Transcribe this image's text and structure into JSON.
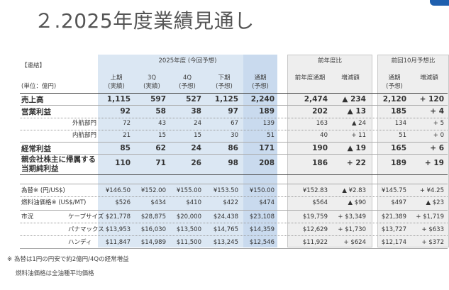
{
  "title": "２.2025年度業績見通し",
  "header": {
    "consolidated": "【連結】",
    "unit": "(単位：億円)",
    "group_2025": "2025年度 (今回予想)",
    "group_prev_year": "前年度比",
    "group_prev_fcst": "前回10月予想比",
    "cols": [
      {
        "top": "上期",
        "bottom": "(実績)"
      },
      {
        "top": "3Q",
        "bottom": "(実績)"
      },
      {
        "top": "4Q",
        "bottom": "(予想)"
      },
      {
        "top": "下期",
        "bottom": "(予想)"
      },
      {
        "top": "通期",
        "bottom": "(予想)"
      },
      {
        "top": "前年度通期",
        "bottom": ""
      },
      {
        "top": "増減額",
        "bottom": ""
      },
      {
        "top": "通期",
        "bottom": "(予想)"
      },
      {
        "top": "増減額",
        "bottom": ""
      }
    ]
  },
  "rows": [
    {
      "label": "売上高",
      "cells": [
        "1,115",
        "597",
        "527",
        "1,125",
        "2,240",
        "2,474",
        "▲ 234",
        "2,120",
        "+ 120"
      ]
    },
    {
      "label": "営業利益",
      "cells": [
        "92",
        "58",
        "38",
        "97",
        "189",
        "202",
        "▲ 13",
        "185",
        "+ 4"
      ]
    },
    {
      "label": "外航部門",
      "cells": [
        "72",
        "43",
        "24",
        "67",
        "139",
        "163",
        "▲ 24",
        "134",
        "+ 5"
      ]
    },
    {
      "label": "内航部門",
      "cells": [
        "21",
        "15",
        "15",
        "30",
        "51",
        "40",
        "+ 11",
        "51",
        "+ 0"
      ]
    },
    {
      "label": "経常利益",
      "cells": [
        "85",
        "62",
        "24",
        "86",
        "171",
        "190",
        "▲ 19",
        "165",
        "+ 6"
      ]
    },
    {
      "label": "親会社株主に帰属する",
      "label2": "当期純利益",
      "cells": [
        "110",
        "71",
        "26",
        "98",
        "208",
        "186",
        "+ 22",
        "189",
        "+ 19"
      ]
    },
    {
      "label": "為替※ (円/US$)",
      "cells": [
        "¥146.50",
        "¥152.00",
        "¥155.00",
        "¥153.50",
        "¥150.00",
        "¥152.83",
        "▲ ¥2.83",
        "¥145.75",
        "+ ¥4.25"
      ]
    },
    {
      "label": "燃料油価格※ (US$/MT)",
      "cells": [
        "$526",
        "$434",
        "$410",
        "$422",
        "$474",
        "$564",
        "▲ $90",
        "$497",
        "▲ $23"
      ]
    },
    {
      "label": "市況",
      "label2": "ケープサイズ",
      "cells": [
        "$21,778",
        "$28,875",
        "$20,000",
        "$24,438",
        "$23,108",
        "$19,759",
        "+ $3,349",
        "$21,389",
        "+ $1,719"
      ]
    },
    {
      "label": "",
      "label2": "パナマックス",
      "cells": [
        "$13,953",
        "$16,030",
        "$13,500",
        "$14,765",
        "$14,359",
        "$12,629",
        "+ $1,730",
        "$13,727",
        "+ $633"
      ]
    },
    {
      "label": "",
      "label2": "ハンディ",
      "cells": [
        "$11,847",
        "$14,989",
        "$11,500",
        "$13,245",
        "$12,546",
        "$11,922",
        "+ $624",
        "$12,174",
        "+ $372"
      ]
    }
  ],
  "notes": [
    "※ 為替は1円の円安で約2億円/4Qの経常増益",
    "燃料油価格は全油種平均価格"
  ]
}
